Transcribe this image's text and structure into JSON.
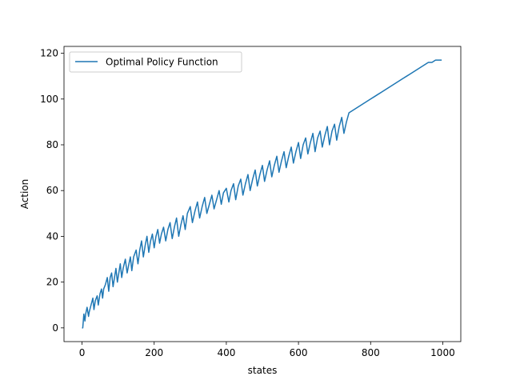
{
  "chart_data": {
    "type": "line",
    "title": "",
    "xlabel": "states",
    "ylabel": "Action",
    "xlim": [
      -50,
      1050
    ],
    "ylim": [
      -6,
      123
    ],
    "xticks": [
      0,
      200,
      400,
      600,
      800,
      1000
    ],
    "yticks": [
      0,
      20,
      40,
      60,
      80,
      100,
      120
    ],
    "xtick_labels": [
      "0",
      "200",
      "400",
      "600",
      "800",
      "1000"
    ],
    "ytick_labels": [
      "0",
      "20",
      "40",
      "60",
      "80",
      "100",
      "120"
    ],
    "grid": false,
    "legend": {
      "position": "top-left",
      "entries": [
        "Optimal Policy Function"
      ]
    },
    "series": [
      {
        "name": "Optimal Policy Function",
        "color": "#1f77b4",
        "x": [
          0,
          2,
          5,
          8,
          10,
          14,
          18,
          20,
          25,
          30,
          33,
          37,
          42,
          45,
          50,
          54,
          57,
          60,
          65,
          70,
          74,
          78,
          82,
          86,
          90,
          94,
          98,
          102,
          106,
          110,
          114,
          120,
          125,
          130,
          134,
          138,
          143,
          150,
          155,
          160,
          165,
          170,
          175,
          180,
          185,
          190,
          195,
          200,
          205,
          210,
          215,
          220,
          226,
          232,
          238,
          244,
          250,
          256,
          262,
          268,
          274,
          280,
          286,
          292,
          300,
          306,
          313,
          320,
          326,
          333,
          340,
          346,
          353,
          360,
          366,
          373,
          380,
          386,
          392,
          400,
          407,
          413,
          420,
          426,
          433,
          440,
          446,
          453,
          460,
          466,
          473,
          480,
          486,
          493,
          500,
          506,
          513,
          520,
          526,
          533,
          540,
          546,
          553,
          560,
          566,
          573,
          580,
          586,
          593,
          600,
          606,
          613,
          620,
          626,
          633,
          640,
          646,
          653,
          660,
          666,
          673,
          680,
          686,
          693,
          700,
          706,
          713,
          720,
          726,
          733,
          740,
          750,
          760,
          770,
          780,
          790,
          800,
          810,
          820,
          830,
          840,
          850,
          860,
          870,
          880,
          890,
          900,
          910,
          920,
          930,
          940,
          950,
          960,
          970,
          980,
          990,
          997
        ],
        "y": [
          0,
          0,
          6,
          3,
          6,
          9,
          5,
          7,
          10,
          13,
          8,
          12,
          14,
          10,
          15,
          17,
          13,
          17,
          19,
          22,
          16,
          22,
          24,
          18,
          22,
          26,
          20,
          24,
          28,
          22,
          26,
          30,
          24,
          28,
          31,
          25,
          31,
          34,
          28,
          34,
          38,
          31,
          36,
          40,
          33,
          38,
          41,
          35,
          40,
          43,
          37,
          41,
          44,
          38,
          43,
          46,
          39,
          44,
          48,
          40,
          45,
          49,
          43,
          50,
          53,
          46,
          51,
          55,
          48,
          53,
          57,
          50,
          54,
          58,
          52,
          56,
          60,
          54,
          59,
          61,
          55,
          60,
          63,
          56,
          62,
          65,
          58,
          63,
          67,
          60,
          65,
          69,
          62,
          67,
          71,
          64,
          69,
          73,
          66,
          71,
          75,
          68,
          73,
          77,
          70,
          75,
          79,
          72,
          77,
          81,
          74,
          80,
          83,
          76,
          81,
          85,
          77,
          83,
          86,
          79,
          84,
          88,
          80,
          86,
          89,
          82,
          88,
          92,
          85,
          90,
          94,
          95,
          96,
          97,
          98,
          99,
          100,
          101,
          102,
          103,
          104,
          105,
          106,
          107,
          108,
          109,
          110,
          111,
          112,
          113,
          114,
          115,
          116,
          116,
          117,
          117,
          117
        ]
      }
    ]
  }
}
